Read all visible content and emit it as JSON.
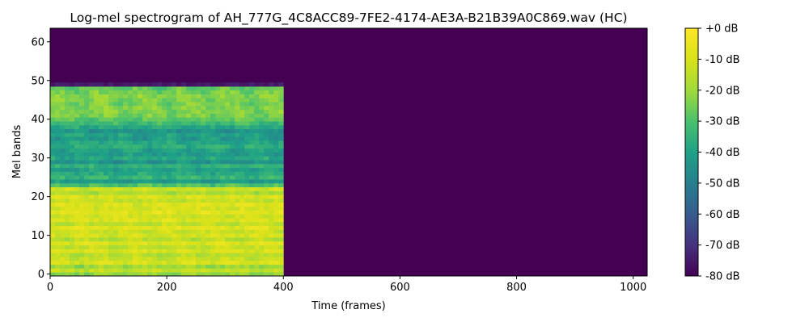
{
  "chart_data": {
    "type": "heatmap",
    "title": "Log-mel spectrogram of AH_777G_4C8ACC89-7FE2-4174-AE3A-B21B39A0C869.wav (HC)",
    "xlabel": "Time (frames)",
    "ylabel": "Mel bands",
    "xlim": [
      0,
      1024
    ],
    "ylim": [
      -0.5,
      63.5
    ],
    "xticks": [
      0,
      200,
      400,
      600,
      800,
      1000
    ],
    "yticks": [
      0,
      10,
      20,
      30,
      40,
      50,
      60
    ],
    "xtick_labels": [
      "0",
      "200",
      "400",
      "600",
      "800",
      "1000"
    ],
    "ytick_labels": [
      "0",
      "10",
      "20",
      "30",
      "40",
      "50",
      "60"
    ],
    "colormap": "viridis",
    "signal_end_frame": 400,
    "n_mels": 64,
    "band_levels_db": [
      -22,
      -14,
      -20,
      -10,
      -13,
      -16,
      -10,
      -14,
      -9,
      -16,
      -10,
      -13,
      -8,
      -15,
      -9,
      -12,
      -8,
      -11,
      -9,
      -14,
      -10,
      -18,
      -12,
      -30,
      -42,
      -34,
      -38,
      -40,
      -36,
      -44,
      -38,
      -42,
      -40,
      -36,
      -38,
      -42,
      -40,
      -44,
      -38,
      -33,
      -28,
      -25,
      -24,
      -23,
      -25,
      -24,
      -23,
      -25,
      -27,
      -75,
      -80,
      -80,
      -80,
      -80,
      -80,
      -80,
      -80,
      -80,
      -80,
      -80,
      -80,
      -80,
      -80,
      -80
    ],
    "colorbar": {
      "min_db": -80,
      "max_db": 0,
      "ticks": [
        0,
        -10,
        -20,
        -30,
        -40,
        -50,
        -60,
        -70,
        -80
      ],
      "tick_labels": [
        "+0 dB",
        "-10 dB",
        "-20 dB",
        "-30 dB",
        "-40 dB",
        "-50 dB",
        "-60 dB",
        "-70 dB",
        "-80 dB"
      ]
    }
  }
}
